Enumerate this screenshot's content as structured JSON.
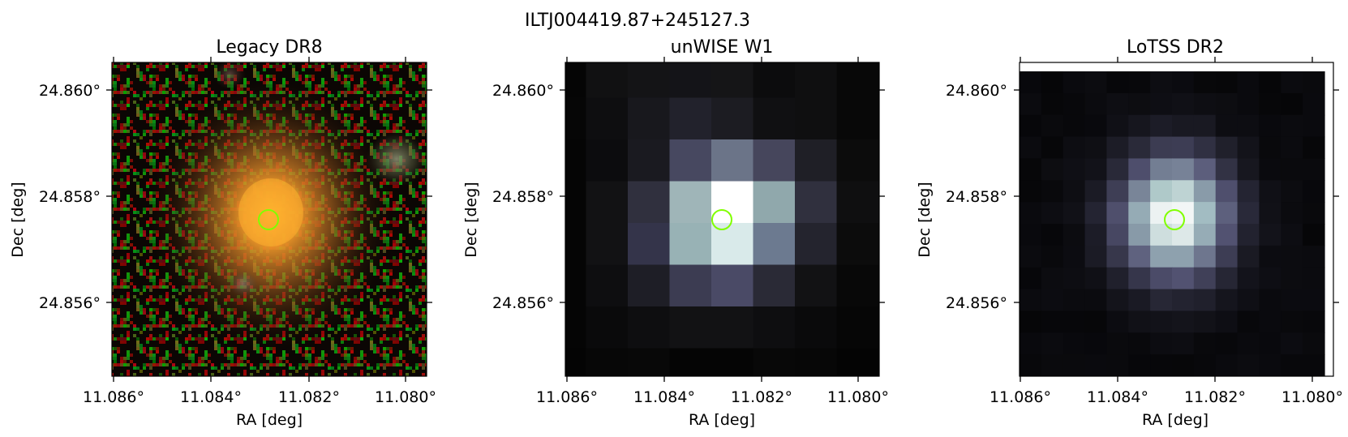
{
  "figure": {
    "title": "ILTJ004419.87+245127.3"
  },
  "panels": [
    {
      "title": "Legacy DR8",
      "xlabel": "RA [deg]",
      "ylabel": "Dec [deg]",
      "xticks": [
        "11.086°",
        "11.084°",
        "11.082°",
        "11.080°"
      ],
      "yticks": [
        "24.860°",
        "24.858°",
        "24.856°"
      ],
      "image": "optical rgb cutout: noisy red/green/black background with orange galaxy glow at center and faint green-grey blob at upper right",
      "marker": "green circle"
    },
    {
      "title": "unWISE W1",
      "xlabel": "RA [deg]",
      "ylabel": "Dec [deg]",
      "xticks": [
        "11.086°",
        "11.084°",
        "11.082°",
        "11.080°"
      ],
      "yticks": [
        "24.860°",
        "24.858°",
        "24.856°"
      ],
      "image": "coarse bone-colormap pixel grid, bright white core at center",
      "marker": "green circle"
    },
    {
      "title": "LoTSS DR2",
      "xlabel": "RA [deg]",
      "ylabel": "Dec [deg]",
      "xticks": [
        "11.086°",
        "11.084°",
        "11.082°",
        "11.080°"
      ],
      "yticks": [
        "24.860°",
        "24.858°",
        "24.856°"
      ],
      "image": "bone-colormap pixel grid, bright core at center, white strips along top and right edge",
      "marker": "green circle"
    }
  ],
  "colors": {
    "marker": "#80ff00",
    "axis": "#000000",
    "background": "#ffffff"
  }
}
